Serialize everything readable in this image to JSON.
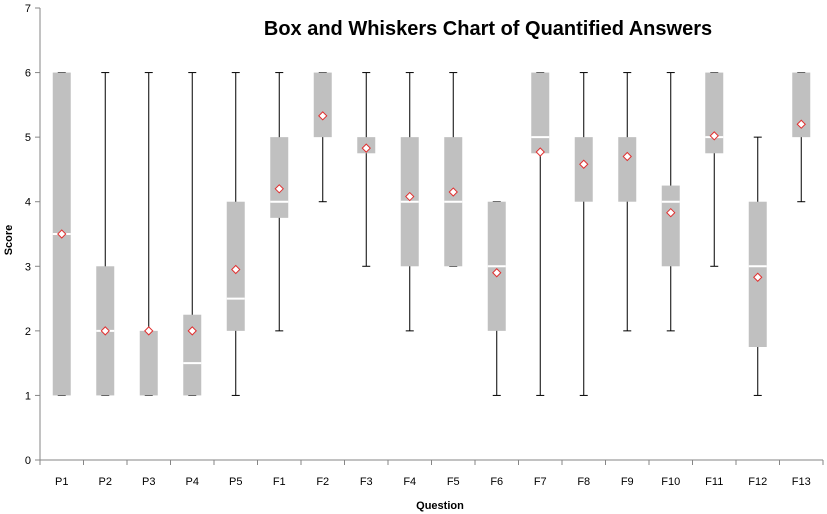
{
  "chart_data": {
    "type": "box",
    "title": "Box and Whiskers Chart of Quantified Answers",
    "xlabel": "Question",
    "ylabel": "Score",
    "ylim": [
      0,
      7
    ],
    "yticks": [
      "0",
      "1",
      "2",
      "3",
      "4",
      "5",
      "6",
      "7"
    ],
    "grid": false,
    "colors": {
      "box": "#c0c0c0",
      "median": "#ffffff",
      "whisker": "#000000",
      "mean_marker": "#e03030"
    },
    "categories": [
      "P1",
      "P2",
      "P3",
      "P4",
      "P5",
      "F1",
      "F2",
      "F3",
      "F4",
      "F5",
      "F6",
      "F7",
      "F8",
      "F9",
      "F10",
      "F11",
      "F12",
      "F13"
    ],
    "boxes": [
      {
        "min": 1,
        "q1": 1,
        "median": 3.5,
        "q3": 6,
        "max": 6,
        "mean": 3.5
      },
      {
        "min": 1,
        "q1": 1,
        "median": 2,
        "q3": 3,
        "max": 6,
        "mean": 2.0
      },
      {
        "min": 1,
        "q1": 1,
        "median": 2,
        "q3": 2,
        "max": 6,
        "mean": 2.0
      },
      {
        "min": 1,
        "q1": 1,
        "median": 1.5,
        "q3": 2.25,
        "max": 6,
        "mean": 2.0
      },
      {
        "min": 1,
        "q1": 2,
        "median": 2.5,
        "q3": 4,
        "max": 6,
        "mean": 2.95
      },
      {
        "min": 2,
        "q1": 3.75,
        "median": 4,
        "q3": 5,
        "max": 6,
        "mean": 4.2
      },
      {
        "min": 4,
        "q1": 5,
        "median": 5,
        "q3": 6,
        "max": 6,
        "mean": 5.33
      },
      {
        "min": 3,
        "q1": 4.75,
        "median": 5,
        "q3": 5,
        "max": 6,
        "mean": 4.83
      },
      {
        "min": 2,
        "q1": 3,
        "median": 4,
        "q3": 5,
        "max": 6,
        "mean": 4.08
      },
      {
        "min": 3,
        "q1": 3,
        "median": 4,
        "q3": 5,
        "max": 6,
        "mean": 4.15
      },
      {
        "min": 1,
        "q1": 2,
        "median": 3,
        "q3": 4,
        "max": 4,
        "mean": 2.9
      },
      {
        "min": 1,
        "q1": 4.75,
        "median": 5,
        "q3": 6,
        "max": 6,
        "mean": 4.77
      },
      {
        "min": 1,
        "q1": 4,
        "median": 4,
        "q3": 5,
        "max": 6,
        "mean": 4.58
      },
      {
        "min": 2,
        "q1": 4,
        "median": 4,
        "q3": 5,
        "max": 6,
        "mean": 4.7
      },
      {
        "min": 2,
        "q1": 3,
        "median": 4,
        "q3": 4.25,
        "max": 6,
        "mean": 3.83
      },
      {
        "min": 3,
        "q1": 4.75,
        "median": 5,
        "q3": 6,
        "max": 6,
        "mean": 5.02
      },
      {
        "min": 1,
        "q1": 1.75,
        "median": 3,
        "q3": 4,
        "max": 5,
        "mean": 2.83
      },
      {
        "min": 4,
        "q1": 5,
        "median": 5,
        "q3": 6,
        "max": 6,
        "mean": 5.2
      }
    ]
  }
}
